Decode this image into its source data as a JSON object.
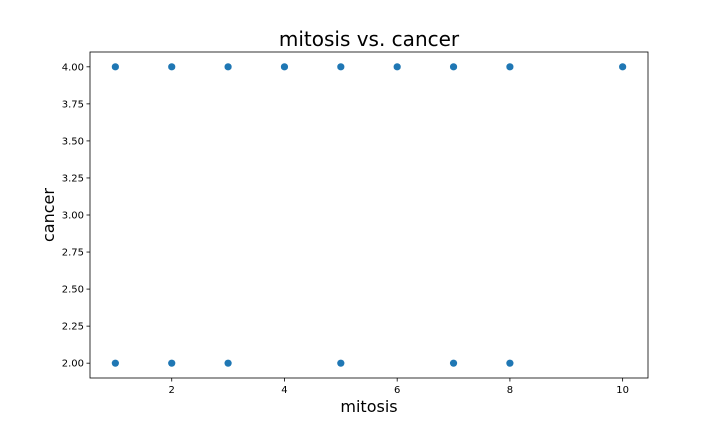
{
  "chart_data": {
    "type": "scatter",
    "title": "mitosis vs. cancer",
    "xlabel": "mitosis",
    "ylabel": "cancer",
    "xlim": [
      0.55,
      10.45
    ],
    "ylim": [
      1.9,
      4.1
    ],
    "grid": false,
    "x_ticks": [
      2,
      4,
      6,
      8,
      10
    ],
    "x_tick_labels": [
      "2",
      "4",
      "6",
      "8",
      "10"
    ],
    "y_ticks": [
      2.0,
      2.25,
      2.5,
      2.75,
      3.0,
      3.25,
      3.5,
      3.75,
      4.0
    ],
    "y_tick_labels": [
      "2.00",
      "2.25",
      "2.50",
      "2.75",
      "3.00",
      "3.25",
      "3.50",
      "3.75",
      "4.00"
    ],
    "series": [
      {
        "color": "#1f77b4",
        "points": [
          {
            "x": 1,
            "y": 2
          },
          {
            "x": 2,
            "y": 2
          },
          {
            "x": 3,
            "y": 2
          },
          {
            "x": 5,
            "y": 2
          },
          {
            "x": 7,
            "y": 2
          },
          {
            "x": 8,
            "y": 2
          },
          {
            "x": 1,
            "y": 4
          },
          {
            "x": 2,
            "y": 4
          },
          {
            "x": 3,
            "y": 4
          },
          {
            "x": 4,
            "y": 4
          },
          {
            "x": 5,
            "y": 4
          },
          {
            "x": 6,
            "y": 4
          },
          {
            "x": 7,
            "y": 4
          },
          {
            "x": 8,
            "y": 4
          },
          {
            "x": 10,
            "y": 4
          }
        ]
      }
    ]
  }
}
